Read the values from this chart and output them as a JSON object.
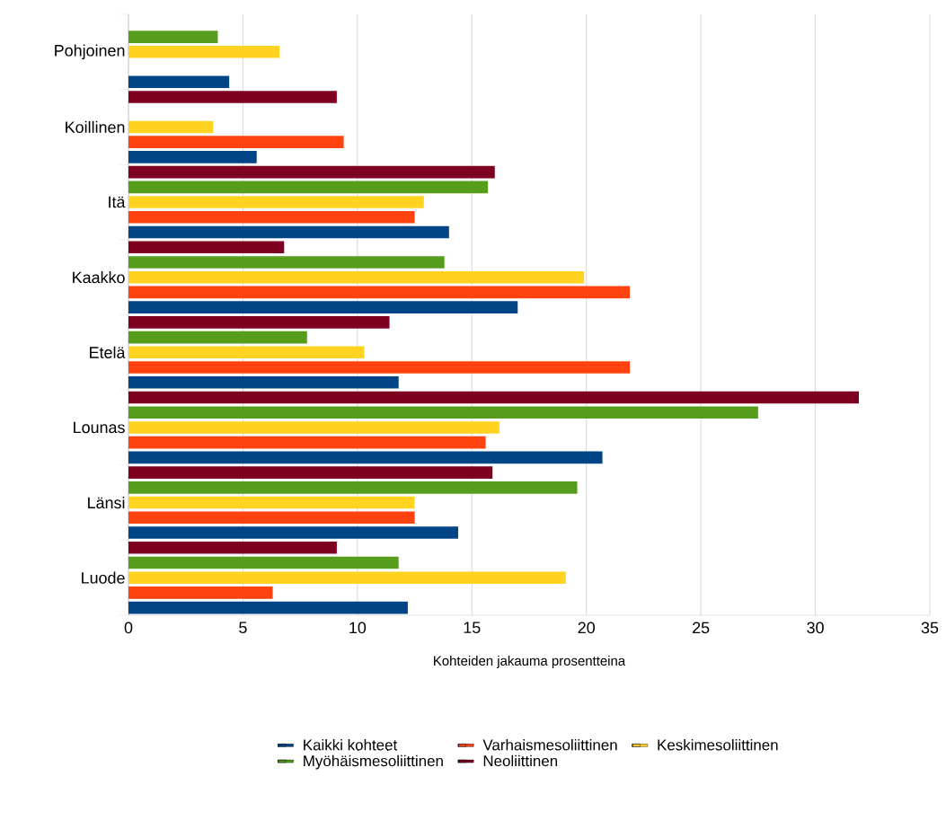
{
  "chart_data": {
    "type": "bar",
    "orientation": "horizontal",
    "xlabel": "Kohteiden jakauma prosentteina",
    "categories": [
      "Pohjoinen",
      "Koillinen",
      "Itä",
      "Kaakko",
      "Etelä",
      "Lounas",
      "Länsi",
      "Luode"
    ],
    "series": [
      {
        "name": "Kaikki kohteet",
        "color": "#004586",
        "values": [
          4.4,
          5.6,
          14.0,
          17.0,
          11.8,
          20.7,
          14.4,
          12.2
        ]
      },
      {
        "name": "Varhaismesoliittinen",
        "color": "#ff420e",
        "values": [
          null,
          9.4,
          12.5,
          21.9,
          21.9,
          15.6,
          12.5,
          6.3
        ]
      },
      {
        "name": "Keskimesoliittinen",
        "color": "#ffd320",
        "values": [
          6.6,
          3.7,
          12.9,
          19.9,
          10.3,
          16.2,
          12.5,
          19.1
        ]
      },
      {
        "name": "Myöhäismesoliittinen",
        "color": "#579d1c",
        "values": [
          3.9,
          null,
          15.7,
          13.8,
          7.8,
          27.5,
          19.6,
          11.8
        ]
      },
      {
        "name": "Neoliittinen",
        "color": "#7e0021",
        "values": [
          null,
          9.1,
          16.0,
          6.8,
          11.4,
          31.9,
          15.9,
          9.1
        ]
      }
    ],
    "xlim": [
      0,
      35
    ],
    "xticks": [
      0,
      5,
      10,
      15,
      20,
      25,
      30,
      35
    ],
    "grid": "x",
    "legend": "bottom"
  }
}
